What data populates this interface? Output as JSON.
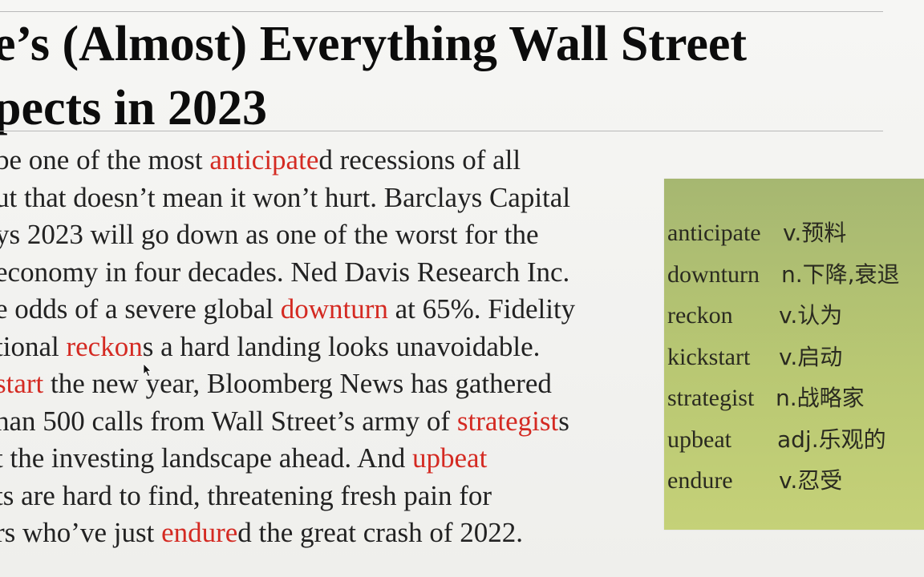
{
  "title": {
    "line1": "e’s (Almost) Everything Wall Street",
    "line2": "pects in 2023"
  },
  "body": {
    "lines": [
      [
        {
          "t": "be one of the most "
        },
        {
          "t": "anticipate",
          "hl": true
        },
        {
          "t": "d recessions of all"
        }
      ],
      [
        {
          "t": "ut that doesn’t mean it won’t hurt. Barclays Capital"
        }
      ],
      [
        {
          "t": "ys 2023 will go down as one of the worst for the"
        }
      ],
      [
        {
          "t": "economy in four decades. Ned Davis Research Inc."
        }
      ],
      [
        {
          "t": "e odds of a severe global "
        },
        {
          "t": "downturn",
          "hl": true
        },
        {
          "t": " at 65%. Fidelity"
        }
      ],
      [
        {
          "t": "tional "
        },
        {
          "t": "reckon",
          "hl": true
        },
        {
          "t": "s a hard landing looks unavoidable."
        }
      ],
      [
        {
          "t": "start",
          "hl": true
        },
        {
          "t": " the new year, Bloomberg News has gathered"
        }
      ],
      [
        {
          "t": "han 500 calls from Wall Street’s army of "
        },
        {
          "t": "strategist",
          "hl": true
        },
        {
          "t": "s"
        }
      ],
      [
        {
          "t": "t the investing landscape ahead. And "
        },
        {
          "t": "upbeat",
          "hl": true
        }
      ],
      [
        {
          "t": "ts are hard to find, threatening fresh pain for"
        }
      ],
      [
        {
          "t": "rs who’ve just "
        },
        {
          "t": "endure",
          "hl": true
        },
        {
          "t": "d the great crash of 2022."
        }
      ]
    ]
  },
  "vocab": [
    {
      "word": "anticipate",
      "def": "v.预料"
    },
    {
      "word": "downturn",
      "def": "n.下降,衰退"
    },
    {
      "word": "reckon",
      "def": "v.认为"
    },
    {
      "word": "kickstart",
      "def": "v.启动"
    },
    {
      "word": "strategist",
      "def": "n.战略家"
    },
    {
      "word": "upbeat",
      "def": "adj.乐观的"
    },
    {
      "word": "endure",
      "def": "v.忍受"
    }
  ],
  "colors": {
    "highlight": "#d42a22",
    "vocab_box": "#b5c572",
    "text": "#222222"
  },
  "icons": {
    "cursor": "mouse-pointer-icon"
  }
}
